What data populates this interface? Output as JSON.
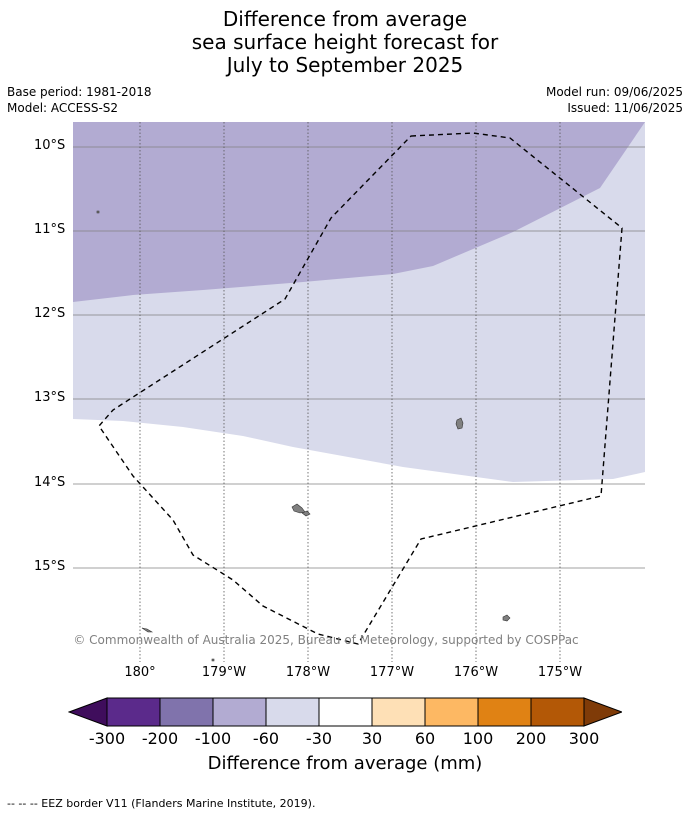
{
  "title_lines": [
    "Difference from average",
    "sea surface height forecast for",
    "July to September 2025"
  ],
  "meta_left": [
    "Base period: 1981-2018",
    "Model: ACCESS-S2"
  ],
  "meta_right": [
    "Model run: 09/06/2025",
    "Issued: 11/06/2025"
  ],
  "lat_labels": [
    "10°S",
    "11°S",
    "12°S",
    "13°S",
    "14°S",
    "15°S"
  ],
  "lon_labels": [
    "180°",
    "179°W",
    "178°W",
    "177°W",
    "176°W",
    "175°W"
  ],
  "copyright": "© Commonwealth of Australia 2025, Bureau of Meteorology, supported by COSPPac",
  "colorbar": {
    "ticks": [
      "-300",
      "-200",
      "-100",
      "-60",
      "-30",
      "30",
      "60",
      "100",
      "200",
      "300"
    ],
    "colors": [
      "#3f0d5c",
      "#5b2a8b",
      "#8073ac",
      "#b2abd2",
      "#d8daeb",
      "#ffffff",
      "#fee0b6",
      "#fdb863",
      "#e08214",
      "#b35806",
      "#7f3b08"
    ],
    "title": "Difference from average (mm)"
  },
  "footnote": "--  --  -- EEZ border V11 (Flanders Marine Institute, 2019).",
  "colors": {
    "band_dark": "#b2abd2",
    "band_light": "#d8daeb",
    "grid": "#808080",
    "island": "#808080"
  }
}
